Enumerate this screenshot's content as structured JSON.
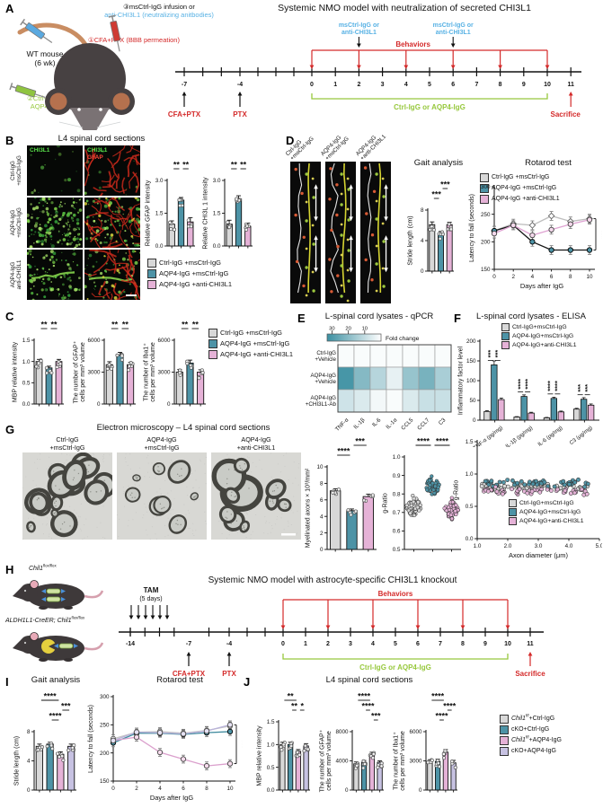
{
  "palette": {
    "gray": "#d8d8d8",
    "teal": "#4d93a6",
    "pink": "#e5b2d7",
    "purple": "#c7c2e2",
    "red": "#d42a2a",
    "blue": "#57b1e4",
    "green": "#97c83d",
    "heat": "#3b8fa1"
  },
  "A": {
    "label": "A",
    "title": "Systemic NMO model with neutralization of secreted CHI3L1",
    "inj_top1": "③msCtrl-IgG infusion or",
    "inj_top2": "anti-CHI3L1 (neutralizing anitbodies)",
    "inj_cfa": "①CFA+PTX (BBB permeation)",
    "mouse1": "WT mouse",
    "mouse2": "(6 wk)",
    "inj_green1": "②Ctrl-IgG or",
    "inj_green2": "AQP4-IgG",
    "tl": {
      "blue1": "msCtrl-IgG or",
      "blue2": "anti-CHI3L1",
      "behaviors": "Behaviors",
      "cfa": "CFA+PTX",
      "ptx": "PTX",
      "bracket": "Ctrl-IgG or AQP4-IgG",
      "sacrifice": "Sacrifice",
      "pre": [
        "-7",
        "-4"
      ],
      "days": [
        "0",
        "1",
        "2",
        "3",
        "4",
        "5",
        "6",
        "7",
        "8",
        "9",
        "10",
        "11"
      ]
    }
  },
  "B": {
    "label": "B",
    "title": "L4 spinal cord sections",
    "rows": [
      [
        "Ctrl-IgG",
        "+msCtrl-IgG"
      ],
      [
        "AQP4-IgG",
        "+msCtrl-IgG"
      ],
      [
        "AQP4-IgG",
        "anti-CHI3L1"
      ]
    ],
    "img_label_green": "CHI3L1",
    "img_label_red": "GFAP"
  },
  "C": {
    "label": "C"
  },
  "D": {
    "label": "D",
    "gait_title": "Gait analysis",
    "rotarod_title": "Rotarod test",
    "tracks": [
      [
        "Ctrl-IgG",
        "+msCtrl-IgG"
      ],
      [
        "AQP4-IgG",
        "+msCtrl-IgG"
      ],
      [
        "AQP4-IgG",
        "+anti-CHI3L1"
      ]
    ]
  },
  "E": {
    "label": "E",
    "title": "L-spinal cord lysates - qPCR",
    "colorbar_label": "Fold change",
    "colorbar_ticks": [
      "30",
      "20",
      "10"
    ],
    "rows": [
      [
        "Ctrl-IgG",
        "+Vehicle"
      ],
      [
        "AQP4-IgG",
        "+Vehicle"
      ],
      [
        "AQP4-IgG",
        "+CHI3L1-Ab"
      ]
    ],
    "cols": [
      "TNF-α",
      "IL-1β",
      "IL-6",
      "IL-1α",
      "CCL5",
      "CCL7",
      "C3"
    ],
    "values": [
      [
        1,
        1,
        1,
        1,
        1,
        1,
        1
      ],
      [
        30,
        20,
        12,
        4,
        17,
        22,
        14
      ],
      [
        8,
        6,
        2,
        1,
        6,
        9,
        9
      ]
    ],
    "vmax": 32
  },
  "F": {
    "label": "F",
    "title": "L-spinal cord lysates - ELISA"
  },
  "G": {
    "label": "G",
    "title": "Electron microscopy – L4 spinal cord sections",
    "imgs": [
      [
        "Ctrl-IgG",
        "+msCtrl-IgG"
      ],
      [
        "AQP4-IgG",
        "+msCtrl-IgG"
      ],
      [
        "AQP4-IgG",
        "+anti-CHI3L1"
      ]
    ]
  },
  "H": {
    "label": "H",
    "title": "Systemic NMO model with astrocyte-specific CHI3L1 knockout",
    "m1_gene": "Chil1",
    "m1_sup": "flox/flox",
    "m2_pre": "ALDH1L1-CreER; ",
    "m2_gene": "Chil1",
    "m2_sup": "flox/flox",
    "tl": {
      "tam1": "TAM",
      "tam2": "(5 days)",
      "behaviors": "Behaviors",
      "cfa": "CFA+PTX",
      "ptx": "PTX",
      "bracket": "Ctrl-IgG or AQP4-IgG",
      "sacrifice": "Sacrifice",
      "pre": [
        "-14",
        "-7",
        "-4"
      ],
      "days": [
        "0",
        "1",
        "2",
        "3",
        "4",
        "5",
        "6",
        "7",
        "8",
        "9",
        "10",
        "11"
      ]
    }
  },
  "I": {
    "label": "I",
    "gait_title": "Gait analysis",
    "rotarod_title": "Rotarod test"
  },
  "J": {
    "label": "J",
    "title": "L4 spinal cord sections"
  },
  "legends": {
    "grp3": {
      "items": [
        {
          "t": "Ctrl-IgG +msCtrl-IgG",
          "c": "gray"
        },
        {
          "t": "AQP4-IgG +msCtrl-IgG",
          "c": "teal"
        },
        {
          "t": "AQP4-IgG +anti-CHI3L1",
          "c": "pink"
        }
      ]
    },
    "grp3t": {
      "items": [
        {
          "t": "Ctrl-IgG+msCtrl-IgG",
          "c": "gray"
        },
        {
          "t": "AQP4-IgG+msCtrl-IgG",
          "c": "teal"
        },
        {
          "t": "AQP4-IgG+anti-CHI3L1",
          "c": "pink"
        }
      ]
    },
    "grp4": {
      "items": [
        {
          "parts": [
            {
              "t": "Chil1",
              "i": 1
            },
            {
              "t": "f/f",
              "s": 1
            },
            {
              "t": "+Ctrl-IgG"
            }
          ],
          "c": "gray"
        },
        {
          "parts": [
            {
              "t": "cKO+Ctrl-IgG"
            }
          ],
          "c": "teal"
        },
        {
          "parts": [
            {
              "t": "Chil1",
              "i": 1
            },
            {
              "t": "f/f",
              "s": 1
            },
            {
              "t": "+AQP4-IgG"
            }
          ],
          "c": "pink"
        },
        {
          "parts": [
            {
              "t": "cKO+AQP4-IgG"
            }
          ],
          "c": "purple"
        }
      ]
    }
  },
  "charts": {
    "b_gfap": {
      "kind": "bar",
      "ml": 26,
      "ylabel": "Relative GFAP intensity",
      "ylim": [
        0,
        3
      ],
      "tv": [
        0,
        1.5,
        3
      ],
      "tl": [
        "0.0",
        "1.5",
        "3.0"
      ],
      "values": [
        1.0,
        2.1,
        1.1
      ],
      "errors": [
        0.15,
        0.12,
        0.2
      ],
      "colors": [
        "gray",
        "teal",
        "pink"
      ],
      "sig": [
        {
          "a": 0,
          "b": 1,
          "s": "**",
          "lvl": 0
        },
        {
          "a": 1,
          "b": 2,
          "s": "**",
          "lvl": 0
        }
      ],
      "seed": 3
    },
    "b_chi": {
      "kind": "bar",
      "ml": 26,
      "ylabel": "Relative CHI3L 1 intensity",
      "ylim": [
        0,
        3
      ],
      "tv": [
        0,
        1.5,
        3
      ],
      "tl": [
        "0.0",
        "1.5",
        "3.0"
      ],
      "values": [
        1.0,
        2.15,
        0.9
      ],
      "errors": [
        0.18,
        0.15,
        0.15
      ],
      "colors": [
        "gray",
        "teal",
        "pink"
      ],
      "sig": [
        {
          "a": 0,
          "b": 1,
          "s": "**",
          "lvl": 0
        },
        {
          "a": 1,
          "b": 2,
          "s": "**",
          "lvl": 0
        }
      ],
      "seed": 4
    },
    "c_mbp": {
      "kind": "bar",
      "ml": 26,
      "ylabel": "MBP relative intensity",
      "ylim": [
        0,
        1.5
      ],
      "tv": [
        0,
        0.5,
        1,
        1.5
      ],
      "tl": [
        "0.0",
        "0.5",
        "1.0",
        "1.5"
      ],
      "values": [
        1.0,
        0.85,
        1.0
      ],
      "errors": [
        0.05,
        0.04,
        0.05
      ],
      "colors": [
        "gray",
        "teal",
        "pink"
      ],
      "sig": [
        {
          "a": 0,
          "b": 1,
          "s": "**",
          "lvl": 0
        },
        {
          "a": 1,
          "b": 2,
          "s": "**",
          "lvl": 0
        }
      ],
      "seed": 5
    },
    "c_gfap": {
      "kind": "bar",
      "ml": 36,
      "ylabel": [
        "The number of GFAP⁺",
        "cells per mm³ volume"
      ],
      "ylim": [
        0,
        6000
      ],
      "tv": [
        0,
        3000,
        6000
      ],
      "tl": [
        "0",
        "3000",
        "6000"
      ],
      "values": [
        3700,
        4600,
        3700
      ],
      "errors": [
        280,
        260,
        220
      ],
      "colors": [
        "gray",
        "teal",
        "pink"
      ],
      "sig": [
        {
          "a": 0,
          "b": 1,
          "s": "**",
          "lvl": 0
        },
        {
          "a": 1,
          "b": 2,
          "s": "**",
          "lvl": 0
        }
      ],
      "seed": 6
    },
    "c_iba1": {
      "kind": "bar",
      "ml": 36,
      "ylabel": [
        "The number of Iba1⁺",
        "cells per mm³ volume"
      ],
      "ylim": [
        0,
        6000
      ],
      "tv": [
        0,
        3000,
        6000
      ],
      "tl": [
        "0",
        "3000",
        "6000"
      ],
      "values": [
        3000,
        3850,
        3000
      ],
      "errors": [
        260,
        280,
        220
      ],
      "colors": [
        "gray",
        "teal",
        "pink"
      ],
      "sig": [
        {
          "a": 0,
          "b": 1,
          "s": "**",
          "lvl": 0
        },
        {
          "a": 1,
          "b": 2,
          "s": "**",
          "lvl": 0
        }
      ],
      "seed": 7
    },
    "d_stride": {
      "kind": "bar",
      "ml": 24,
      "ylabel": "Stride length (cm)",
      "ylim": [
        0,
        8
      ],
      "tv": [
        0,
        4,
        8
      ],
      "tl": [
        "0",
        "4",
        "8"
      ],
      "values": [
        6.1,
        4.9,
        6.1
      ],
      "errors": [
        0.35,
        0.3,
        0.3
      ],
      "colors": [
        "gray",
        "teal",
        "pink"
      ],
      "sig": [
        {
          "a": 0,
          "b": 1,
          "s": "***",
          "lvl": 1
        },
        {
          "a": 1,
          "b": 2,
          "s": "***",
          "lvl": 0
        }
      ],
      "seed": 8
    },
    "d_rota": {
      "kind": "line",
      "ylabel": "Latency to fall (seconds)",
      "xlabel": "Days after IgG",
      "ylim": [
        150,
        300
      ],
      "tv": [
        150,
        200,
        250,
        300
      ],
      "tl": [
        "150",
        "200",
        "250",
        "300"
      ],
      "x": [
        0,
        2,
        4,
        6,
        8,
        10
      ],
      "err": 8,
      "series": [
        {
          "name": "Ctrl-IgG +msCtrl-IgG",
          "line": "#bdbdbd",
          "mf": "#fff",
          "ms": "#666",
          "mk": "d",
          "values": [
            220,
            233,
            230,
            247,
            237,
            242
          ]
        },
        {
          "name": "AQP4-IgG +msCtrl-IgG",
          "line": "#161616",
          "mf": "teal",
          "ms": "#000",
          "mk": "c",
          "values": [
            220,
            230,
            200,
            185,
            185,
            185
          ]
        },
        {
          "name": "AQP4-IgG +anti-CHI3L1",
          "line": "#dfa3d2",
          "mf": "#f4d9ec",
          "ms": "#444",
          "mk": "c",
          "values": [
            215,
            230,
            212,
            222,
            232,
            240
          ]
        }
      ],
      "rsig": {
        "s": "***",
        "from": 242,
        "to": 185
      }
    },
    "f_elisa": {
      "kind": "gbar",
      "ml": 26,
      "mt": 8,
      "mb": 30,
      "ylabel": "Inflammatory factor level",
      "ylim": [
        0,
        200
      ],
      "tv": [
        0,
        50,
        100,
        150,
        200
      ],
      "tl": [
        "0",
        "50",
        "100",
        "150",
        "200"
      ],
      "cats": [
        "TNF-α (pg/mg)",
        "IL-1β (pg/mg)",
        "IL-6 (pg/mg)",
        "C3 (μg/mg)"
      ],
      "series": [
        [
          22,
          8,
          6,
          28
        ],
        [
          140,
          60,
          55,
          53
        ],
        [
          52,
          18,
          21,
          38
        ]
      ],
      "errors": [
        [
          2,
          1,
          1,
          2
        ],
        [
          10,
          4,
          3,
          4
        ],
        [
          4,
          2,
          2,
          3
        ]
      ],
      "colors": [
        "gray",
        "teal",
        "pink"
      ],
      "gsig": [
        [
          "***",
          "***"
        ],
        [
          "****",
          "****"
        ],
        [
          "****",
          "****"
        ],
        [
          "***",
          "***"
        ]
      ]
    },
    "g_axons": {
      "kind": "bar",
      "ml": 26,
      "ylabel": "Myelinated axons × 10³/mm²",
      "ylim": [
        0,
        10
      ],
      "tv": [
        0,
        2,
        4,
        6,
        8,
        10
      ],
      "tl": [
        "0",
        "2",
        "4",
        "6",
        "8",
        "10"
      ],
      "values": [
        7.1,
        4.7,
        6.4
      ],
      "errors": [
        0.25,
        0.2,
        0.3
      ],
      "colors": [
        "gray",
        "teal",
        "pink"
      ],
      "sig": [
        {
          "a": 0,
          "b": 1,
          "s": "****",
          "lvl": 1
        },
        {
          "a": 1,
          "b": 2,
          "s": "***",
          "lvl": 0
        }
      ],
      "seed": 9
    },
    "g_violin": {
      "kind": "violin",
      "ml": 26,
      "ylabel": "g-Ratio",
      "ylim": [
        0.5,
        1.0
      ],
      "tv": [
        0.5,
        0.6,
        0.7,
        0.8,
        0.9,
        1.0
      ],
      "tl": [
        "0.5",
        "0.6",
        "0.7",
        "0.8",
        "0.9",
        "1.0"
      ],
      "means": [
        0.73,
        0.84,
        0.72
      ],
      "spread": 0.075,
      "colors": [
        "gray",
        "teal",
        "pink"
      ],
      "sig": [
        {
          "a": 0,
          "b": 1,
          "s": "****",
          "lvl": 0
        },
        {
          "a": 1,
          "b": 2,
          "s": "****",
          "lvl": 0
        }
      ],
      "seed": 12
    },
    "g_scatter": {
      "kind": "scatter",
      "ml": 28,
      "mt": 6,
      "mb": 24,
      "ylabel": "g-Ratio",
      "xlabel": "Axon diameter (μm)",
      "ylim": [
        0,
        1.5
      ],
      "tv": [
        0,
        0.5,
        1,
        1.5
      ],
      "tl": [
        "0.0",
        "0.5",
        "1.0",
        "1.5"
      ],
      "xlim": [
        1,
        5
      ],
      "xtv": [
        1,
        2,
        3,
        4,
        5
      ],
      "xtl": [
        "1.0",
        "2.0",
        "3.0",
        "4.0",
        "5.0"
      ],
      "bases": [
        0.8,
        0.86,
        0.74
      ],
      "colors": [
        "gray",
        "teal",
        "pink"
      ],
      "seed": 13
    },
    "i_stride": {
      "kind": "bar",
      "ml": 24,
      "ylabel": "Stride length (cm)",
      "ylim": [
        0,
        8
      ],
      "tv": [
        0,
        4,
        8
      ],
      "tl": [
        "0",
        "4",
        "8"
      ],
      "values": [
        6.0,
        6.3,
        4.9,
        6.0
      ],
      "errors": [
        0.3,
        0.25,
        0.35,
        0.3
      ],
      "colors": [
        "gray",
        "teal",
        "pink",
        "purple"
      ],
      "sig": [
        {
          "a": 0,
          "b": 2,
          "s": "****",
          "lvl": 0
        },
        {
          "a": 2,
          "b": 3,
          "s": "***",
          "lvl": 1
        },
        {
          "a": 1,
          "b": 2,
          "s": "****",
          "lvl": 2
        }
      ],
      "seed": 14
    },
    "i_rota": {
      "kind": "line",
      "ylabel": "Latency to fall (seconds)",
      "xlabel": "Days after IgG",
      "ylim": [
        150,
        300
      ],
      "tv": [
        150,
        200,
        250,
        300
      ],
      "tl": [
        "150",
        "200",
        "250",
        "300"
      ],
      "x": [
        0,
        2,
        4,
        6,
        8,
        10
      ],
      "err": 7,
      "series": [
        {
          "name": "Chil1f/f+Ctrl-IgG",
          "line": "#c4c4c4",
          "mf": "#fff",
          "ms": "#666",
          "mk": "c",
          "values": [
            225,
            237,
            238,
            235,
            240,
            248
          ]
        },
        {
          "name": "cKO+Ctrl-IgG",
          "line": "#3f8a9e",
          "mf": "teal",
          "ms": "#000",
          "mk": "c",
          "values": [
            218,
            235,
            235,
            233,
            236,
            238
          ]
        },
        {
          "name": "Chil1f/f+AQP4-IgG",
          "line": "#dba0cd",
          "mf": "#f6dced",
          "ms": "#444",
          "mk": "c",
          "values": [
            222,
            228,
            201,
            189,
            177,
            181
          ]
        },
        {
          "name": "cKO+AQP4-IgG",
          "line": "#b9b3da",
          "mf": "#e6e2f4",
          "ms": "#555",
          "mk": "c",
          "values": [
            222,
            237,
            236,
            234,
            239,
            250
          ]
        }
      ],
      "rsig": {
        "s": "***",
        "from": 250,
        "to": 181
      }
    },
    "j_mbp": {
      "kind": "bar",
      "ml": 26,
      "ylabel": "MBP relative intensity",
      "ylim": [
        0,
        1.5
      ],
      "tv": [
        0,
        0.5,
        1,
        1.5
      ],
      "tl": [
        "0.0",
        "0.5",
        "1.0",
        "1.5"
      ],
      "values": [
        1.0,
        1.0,
        0.85,
        0.97
      ],
      "errors": [
        0.05,
        0.05,
        0.04,
        0.05
      ],
      "colors": [
        "gray",
        "teal",
        "pink",
        "purple"
      ],
      "sig": [
        {
          "a": 0,
          "b": 2,
          "s": "**",
          "lvl": 0
        },
        {
          "a": 1,
          "b": 2,
          "s": "**",
          "lvl": 1
        },
        {
          "a": 2,
          "b": 3,
          "s": "*",
          "lvl": 1
        }
      ],
      "seed": 15
    },
    "j_gfap": {
      "kind": "bar",
      "ml": 38,
      "ylabel": [
        "The number of GFAP⁺",
        "cells per mm³ volume"
      ],
      "ylim": [
        0,
        8000
      ],
      "tv": [
        0,
        4000,
        8000
      ],
      "tl": [
        "0",
        "4000",
        "8000"
      ],
      "values": [
        3600,
        3800,
        4900,
        3800
      ],
      "errors": [
        250,
        250,
        280,
        200
      ],
      "colors": [
        "gray",
        "teal",
        "pink",
        "purple"
      ],
      "sig": [
        {
          "a": 0,
          "b": 2,
          "s": "****",
          "lvl": 0
        },
        {
          "a": 1,
          "b": 2,
          "s": "****",
          "lvl": 1
        },
        {
          "a": 2,
          "b": 3,
          "s": "***",
          "lvl": 2
        }
      ],
      "seed": 16
    },
    "j_iba1": {
      "kind": "bar",
      "ml": 38,
      "ylabel": [
        "The number of Iba1⁺",
        "cells per mm³ volume"
      ],
      "ylim": [
        0,
        6000
      ],
      "tv": [
        0,
        3000,
        6000
      ],
      "tl": [
        "0",
        "3000",
        "6000"
      ],
      "values": [
        2900,
        2950,
        3900,
        2800
      ],
      "errors": [
        220,
        220,
        260,
        250
      ],
      "colors": [
        "gray",
        "teal",
        "pink",
        "purple"
      ],
      "sig": [
        {
          "a": 0,
          "b": 2,
          "s": "****",
          "lvl": 0
        },
        {
          "a": 2,
          "b": 3,
          "s": "****",
          "lvl": 1
        },
        {
          "a": 1,
          "b": 2,
          "s": "****",
          "lvl": 2
        }
      ],
      "seed": 17
    }
  }
}
